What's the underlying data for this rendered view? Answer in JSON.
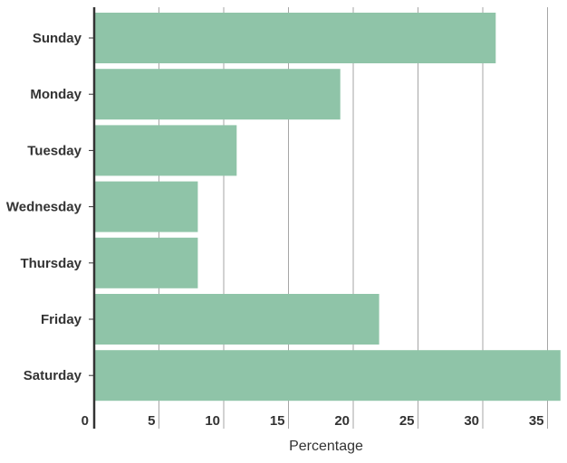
{
  "chart_data": {
    "type": "bar",
    "orientation": "horizontal",
    "title": "",
    "xlabel": "Percentage",
    "ylabel": "",
    "categories": [
      "Sunday",
      "Monday",
      "Tuesday",
      "Wednesday",
      "Thursday",
      "Friday",
      "Saturday"
    ],
    "values": [
      31,
      19,
      11,
      8,
      8,
      22,
      36
    ],
    "xlim": [
      0,
      36
    ],
    "xticks": [
      0,
      5,
      10,
      15,
      20,
      25,
      30,
      35
    ],
    "grid": "vertical",
    "legend": "none",
    "colors": {
      "bar": "#8fc4a8",
      "grid": "#a6a6a6",
      "axis": "#333333",
      "text": "#333333"
    }
  }
}
